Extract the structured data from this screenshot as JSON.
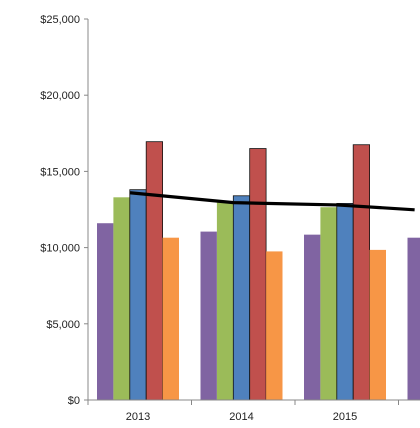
{
  "chart_data": {
    "type": "bar",
    "categories": [
      "2013",
      "2014",
      "2015",
      ""
    ],
    "series": [
      {
        "color": "#8064A2",
        "values": [
          11600,
          11050,
          10850,
          10650
        ]
      },
      {
        "color": "#9BBB59",
        "values": [
          13300,
          13000,
          12650,
          null
        ]
      },
      {
        "color": "#4F81BD",
        "values": [
          13800,
          13400,
          12900,
          null
        ]
      },
      {
        "color": "#C0504D",
        "values": [
          16950,
          16500,
          16750,
          null
        ]
      },
      {
        "color": "#F79646",
        "values": [
          10650,
          9750,
          9850,
          null
        ]
      }
    ],
    "trend_line": {
      "color": "#000000",
      "x": [
        0.0,
        1.0,
        2.0,
        2.75
      ],
      "values": [
        13600,
        12950,
        12800,
        12480
      ]
    },
    "ylim": [
      0,
      25000
    ],
    "yticks": [
      0,
      5000,
      10000,
      15000,
      20000,
      25000
    ],
    "ytick_labels": [
      "$0",
      "$5,000",
      "$10,000",
      "$15,000",
      "$20,000",
      "$25,000"
    ],
    "xtick_labels": [
      "2013",
      "2014",
      "2015"
    ],
    "grid": false,
    "legend": "none",
    "title": "",
    "xlabel": "",
    "ylabel": ""
  }
}
